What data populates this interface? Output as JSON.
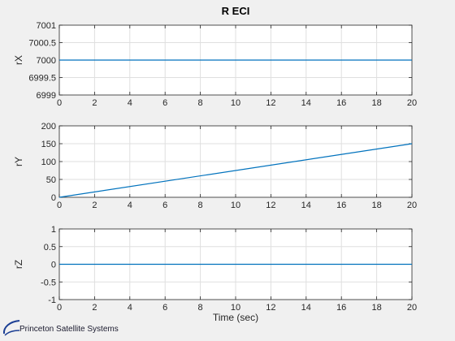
{
  "figure": {
    "title": "R ECI",
    "background": "#f0f0f0",
    "line_color": "#0072bd",
    "grid_color": "#dfdfdf"
  },
  "logo": {
    "text": "Princeton Satellite Systems",
    "icon": "orbit-swoosh-icon",
    "color": "#1c3f94"
  },
  "chart_data": [
    {
      "type": "line",
      "title": "R ECI",
      "xlabel": "",
      "ylabel": "rX",
      "xlim": [
        0,
        20
      ],
      "ylim": [
        6999,
        7001
      ],
      "xticks": [
        "0",
        "2",
        "4",
        "6",
        "8",
        "10",
        "12",
        "14",
        "16",
        "18",
        "20"
      ],
      "yticks": [
        "6999",
        "6999.5",
        "7000",
        "7000.5",
        "7001"
      ],
      "ytick_values": [
        6999,
        6999.5,
        7000,
        7000.5,
        7001
      ],
      "grid": true,
      "series": [
        {
          "name": "rX",
          "x": [
            0,
            20
          ],
          "y": [
            7000,
            7000
          ]
        }
      ]
    },
    {
      "type": "line",
      "xlabel": "",
      "ylabel": "rY",
      "xlim": [
        0,
        20
      ],
      "ylim": [
        0,
        200
      ],
      "xticks": [
        "0",
        "2",
        "4",
        "6",
        "8",
        "10",
        "12",
        "14",
        "16",
        "18",
        "20"
      ],
      "yticks": [
        "0",
        "50",
        "100",
        "150",
        "200"
      ],
      "ytick_values": [
        0,
        50,
        100,
        150,
        200
      ],
      "grid": true,
      "series": [
        {
          "name": "rY",
          "x": [
            0,
            20
          ],
          "y": [
            0,
            150
          ]
        }
      ]
    },
    {
      "type": "line",
      "xlabel": "Time (sec)",
      "ylabel": "rZ",
      "xlim": [
        0,
        20
      ],
      "ylim": [
        -1,
        1
      ],
      "xticks": [
        "0",
        "2",
        "4",
        "6",
        "8",
        "10",
        "12",
        "14",
        "16",
        "18",
        "20"
      ],
      "yticks": [
        "-1",
        "-0.5",
        "0",
        "0.5",
        "1"
      ],
      "ytick_values": [
        -1,
        -0.5,
        0,
        0.5,
        1
      ],
      "grid": true,
      "series": [
        {
          "name": "rZ",
          "x": [
            0,
            20
          ],
          "y": [
            0,
            0
          ]
        }
      ]
    }
  ]
}
